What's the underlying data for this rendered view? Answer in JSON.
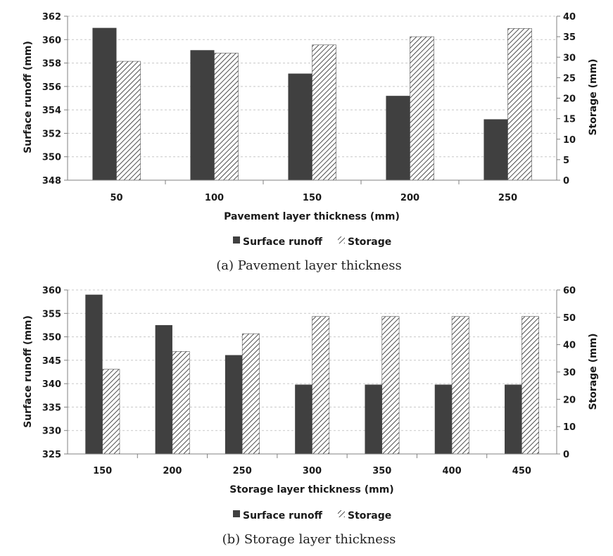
{
  "colors": {
    "runoff_fill": "#404040",
    "storage_hatch": "#222222",
    "grid": "#c8c8c8",
    "axis": "#808080"
  },
  "chart_data": [
    {
      "type": "bar",
      "caption": "(a) Pavement layer thickness",
      "xlabel": "Pavement layer thickness (mm)",
      "ylabel_left": "Surface runoff (mm)",
      "ylabel_right": "Storage (mm)",
      "categories": [
        "50",
        "100",
        "150",
        "200",
        "250"
      ],
      "ylim_left": [
        348,
        362
      ],
      "yticks_left": [
        348,
        350,
        352,
        354,
        356,
        358,
        360,
        362
      ],
      "ylim_right": [
        0,
        40
      ],
      "yticks_right": [
        0,
        5,
        10,
        15,
        20,
        25,
        30,
        35,
        40
      ],
      "grid": true,
      "legend_position": "bottom",
      "series": [
        {
          "name": "Surface runoff",
          "axis": "left",
          "values": [
            361.0,
            359.1,
            357.1,
            355.2,
            353.2
          ]
        },
        {
          "name": "Storage",
          "axis": "right",
          "values": [
            29.0,
            31.0,
            33.0,
            35.0,
            37.0
          ]
        }
      ]
    },
    {
      "type": "bar",
      "caption": "(b) Storage layer thickness",
      "xlabel": "Storage layer thickness (mm)",
      "ylabel_left": "Surface runoff (mm)",
      "ylabel_right": "Storage (mm)",
      "categories": [
        "150",
        "200",
        "250",
        "300",
        "350",
        "400",
        "450"
      ],
      "ylim_left": [
        325,
        360
      ],
      "yticks_left": [
        325,
        330,
        335,
        340,
        345,
        350,
        355,
        360
      ],
      "ylim_right": [
        0,
        60
      ],
      "yticks_right": [
        0,
        10,
        20,
        30,
        40,
        50,
        60
      ],
      "grid": true,
      "legend_position": "bottom",
      "series": [
        {
          "name": "Surface runoff",
          "axis": "left",
          "values": [
            359.0,
            352.5,
            346.1,
            339.8,
            339.8,
            339.8,
            339.8
          ]
        },
        {
          "name": "Storage",
          "axis": "right",
          "values": [
            31.0,
            37.5,
            44.0,
            50.3,
            50.3,
            50.3,
            50.3
          ]
        }
      ]
    }
  ]
}
